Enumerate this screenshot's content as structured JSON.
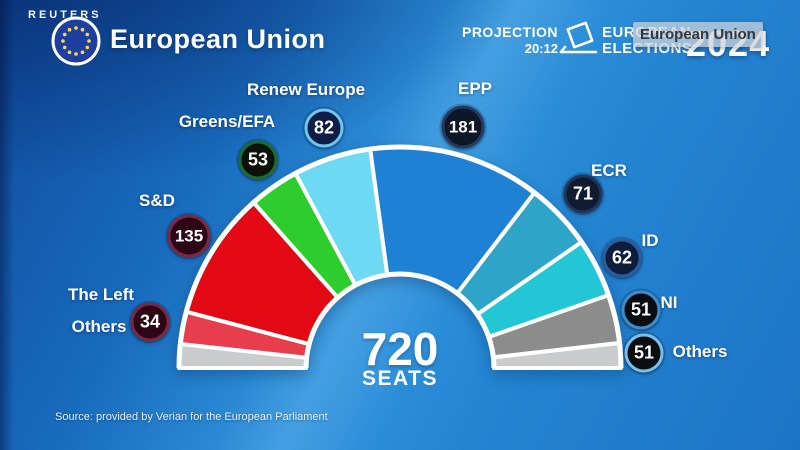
{
  "header": {
    "brand": "REUTERS",
    "title": "European Union",
    "projection_label": "PROJECTION",
    "projection_time": "20:12",
    "elections_line1": "EUROPEAN",
    "elections_line2": "ELECTIONS",
    "elections_year": "2024",
    "caption_overlay": "European Union"
  },
  "center": {
    "total": "720",
    "seats_label": "SEATS"
  },
  "footer": {
    "source": "Source: provided by Verian for the European Parliament"
  },
  "callouts": {
    "renew": {
      "label": "Renew Europe",
      "value": "82",
      "badge": {
        "bg": "#0e1e49",
        "ring": "#6fc6ea"
      }
    },
    "greens": {
      "label": "Greens/EFA",
      "value": "53",
      "badge": {
        "bg": "#0c120a",
        "ring": "#1e6b2e"
      }
    },
    "snd": {
      "label": "S&D",
      "value": "135",
      "badge": {
        "bg": "#2d0715",
        "ring": "#7c2840"
      }
    },
    "left": {
      "label": "The Left",
      "value": "34",
      "badge": {
        "bg": "#2d0715",
        "ring": "#7c2840"
      }
    },
    "left_others": {
      "label": "Others"
    },
    "epp": {
      "label": "EPP",
      "value": "181",
      "badge": {
        "bg": "#0e1728",
        "ring": "#243a5e"
      }
    },
    "ecr": {
      "label": "ECR",
      "value": "71",
      "badge": {
        "bg": "#101b30",
        "ring": "#22355c"
      }
    },
    "id": {
      "label": "ID",
      "value": "62",
      "badge": {
        "bg": "#0f1d3d",
        "ring": "#2c5c9e"
      }
    },
    "ni": {
      "label": "NI",
      "value": "51",
      "badge": {
        "bg": "#090d12",
        "ring": "#3e8cc8"
      }
    },
    "others": {
      "label": "Others",
      "value": "51",
      "badge": {
        "bg": "#0a0e13",
        "ring": "#79bfe8"
      }
    }
  },
  "chart_data": {
    "type": "pie",
    "variant": "hemicycle",
    "title": "720 SEATS",
    "total_seats": 720,
    "legend_position": "around-arc",
    "groups": [
      {
        "name": "The Left",
        "seats": 34,
        "color": "#e83d4c"
      },
      {
        "name": "S&D",
        "seats": 135,
        "color": "#e20915"
      },
      {
        "name": "Greens/EFA",
        "seats": 53,
        "color": "#2ecd2e"
      },
      {
        "name": "Renew Europe",
        "seats": 82,
        "color": "#6ed9f2"
      },
      {
        "name": "EPP",
        "seats": 181,
        "color": "#1e81d4"
      },
      {
        "name": "ECR",
        "seats": 71,
        "color": "#2ea4c8"
      },
      {
        "name": "ID",
        "seats": 62,
        "color": "#23c6d5"
      },
      {
        "name": "NI",
        "seats": 51,
        "color": "#8c8c8c"
      },
      {
        "name": "Others",
        "seats": 51,
        "color": "#c9cbcd"
      }
    ],
    "render_segments": [
      {
        "group": "Others",
        "seats": 25,
        "color": "#c9cbcd"
      },
      {
        "group": "The Left",
        "seats": 34,
        "color": "#e83d4c"
      },
      {
        "group": "S&D",
        "seats": 135,
        "color": "#e20915"
      },
      {
        "group": "Greens/EFA",
        "seats": 53,
        "color": "#2ecd2e"
      },
      {
        "group": "Renew Europe",
        "seats": 82,
        "color": "#6ed9f2"
      },
      {
        "group": "EPP",
        "seats": 181,
        "color": "#1e81d4"
      },
      {
        "group": "ECR",
        "seats": 71,
        "color": "#2ea4c8"
      },
      {
        "group": "ID",
        "seats": 62,
        "color": "#23c6d5"
      },
      {
        "group": "NI",
        "seats": 51,
        "color": "#8c8c8c"
      },
      {
        "group": "Others",
        "seats": 26,
        "color": "#c9cbcd"
      }
    ]
  }
}
